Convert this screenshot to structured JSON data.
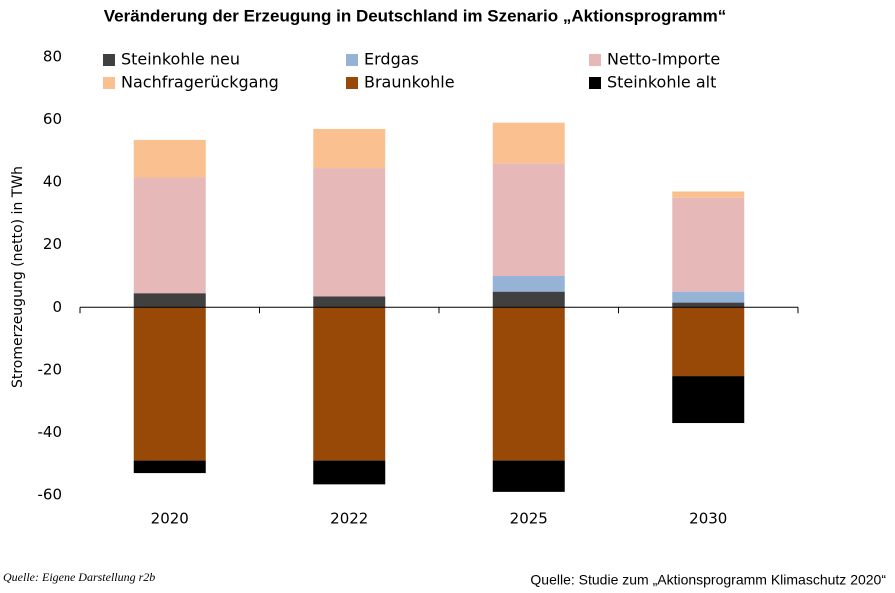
{
  "chart_data": {
    "type": "stacked-bar",
    "title": "Veränderung der Erzeugung in Deutschland im Szenario „Aktionsprogramm“",
    "y_label": "Stromerzeugung (netto) in TWh",
    "categories": [
      "2020",
      "2022",
      "2025",
      "2030"
    ],
    "series": [
      {
        "name": "Steinkohle neu",
        "color": "#404040",
        "values": [
          4.5,
          3.5,
          5,
          1.5
        ]
      },
      {
        "name": "Erdgas",
        "color": "#95b3d7",
        "values": [
          0,
          0,
          5,
          3.5
        ]
      },
      {
        "name": "Netto-Importe",
        "color": "#e6b9b8",
        "values": [
          37,
          41,
          36,
          30
        ]
      },
      {
        "name": "Nachfragerückgang",
        "color": "#fac090",
        "values": [
          12,
          12.5,
          13,
          2
        ]
      },
      {
        "name": "Braunkohle",
        "color": "#984807",
        "values": [
          -49,
          -49,
          -49,
          -22
        ]
      },
      {
        "name": "Steinkohle alt",
        "color": "#000000",
        "values": [
          -4,
          -7.6,
          -10,
          -15
        ]
      }
    ],
    "ylim": [
      -60,
      80
    ],
    "yticks": [
      -60,
      -40,
      -20,
      0,
      20,
      40,
      60,
      80
    ],
    "grid": false,
    "source": "Quelle: Eigene Darstellung r2b",
    "note": "Quelle: Studie zum „Aktionsprogramm Klimaschutz 2020“"
  }
}
